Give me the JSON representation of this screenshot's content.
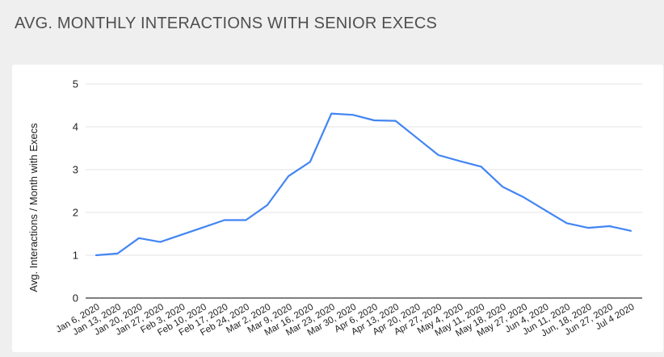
{
  "page": {
    "title": "AVG. MONTHLY INTERACTIONS WITH SENIOR EXECS"
  },
  "chart_data": {
    "type": "line",
    "title": "",
    "xlabel": "",
    "ylabel": "Avg. Interactions / Month with Execs",
    "ylim": [
      0,
      5
    ],
    "yticks": [
      0,
      1,
      2,
      3,
      4,
      5
    ],
    "grid": true,
    "legend": "none",
    "line_color": "#4285f4",
    "categories": [
      "Jan 6, 2020",
      "Jan 13, 2020",
      "Jan 20, 2020",
      "Jan 27, 2020",
      "Feb 3, 2020",
      "Feb 10, 2020",
      "Feb 17, 2020",
      "Feb 24, 2020",
      "Mar 2, 2020",
      "Mar 9, 2020",
      "Mar 16, 2020",
      "Mar 23, 2020",
      "Mar 30, 2020",
      "Apr 6, 2020",
      "Apr 13, 2020",
      "Apr 20, 2020",
      "Apr 27, 2020",
      "May 4, 2020",
      "May 11, 2020",
      "May 18, 2020",
      "May 27, 2020",
      "Jun 4, 2020",
      "Jun 11, 2020",
      "Jun, 18, 2020",
      "Jun 27, 2020",
      "Jul 4 2020"
    ],
    "series": [
      {
        "values": [
          1.0,
          1.04,
          1.4,
          1.31,
          1.48,
          1.65,
          1.82,
          1.82,
          2.17,
          2.85,
          3.18,
          4.31,
          4.28,
          4.15,
          4.14,
          3.74,
          3.34,
          3.2,
          3.07,
          2.6,
          2.35,
          2.05,
          1.75,
          1.64,
          1.68,
          1.57
        ]
      }
    ]
  }
}
